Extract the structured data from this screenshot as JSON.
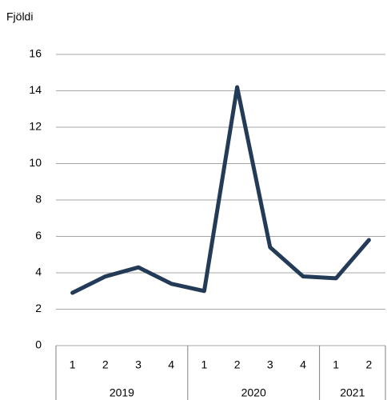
{
  "chart_data": {
    "type": "line",
    "y_label": "Fjöldi",
    "categories": [
      "1",
      "2",
      "3",
      "4",
      "1",
      "2",
      "3",
      "4",
      "1",
      "2"
    ],
    "x_groups": [
      {
        "label": "2019",
        "size": 4
      },
      {
        "label": "2020",
        "size": 4
      },
      {
        "label": "2021",
        "size": 2
      }
    ],
    "series": [
      {
        "name": "Fjöldi",
        "color": "#243b58",
        "values": [
          2.9,
          3.8,
          4.3,
          3.4,
          3.0,
          14.2,
          5.4,
          3.8,
          3.7,
          5.8
        ]
      }
    ],
    "ylim": [
      0,
      16
    ],
    "yticks": [
      0,
      2,
      4,
      6,
      8,
      10,
      12,
      14,
      16
    ],
    "grid": true
  }
}
